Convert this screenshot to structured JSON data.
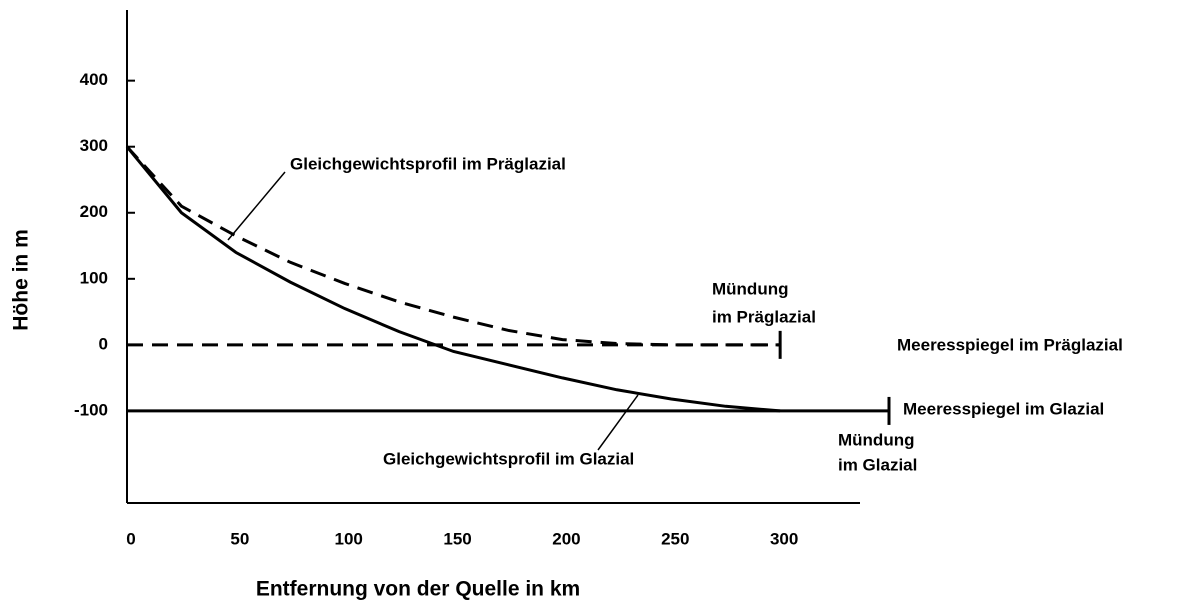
{
  "chart_data": {
    "type": "line",
    "xlabel": "Entfernung von der Quelle in km",
    "ylabel": "Höhe in m",
    "xlim": [
      0,
      350
    ],
    "ylim": [
      -240,
      500
    ],
    "xticks": [
      0,
      50,
      100,
      150,
      200,
      250,
      300
    ],
    "yticks": [
      -100,
      0,
      100,
      200,
      300,
      400
    ],
    "series": [
      {
        "name": "Gleichgewichtsprofil im Präglazial",
        "color": "#000000",
        "dash": true,
        "x": [
          0,
          25,
          50,
          75,
          100,
          125,
          150,
          175,
          200,
          225,
          250,
          275,
          300
        ],
        "values": [
          300,
          210,
          165,
          125,
          93,
          65,
          42,
          22,
          8,
          2,
          0,
          0,
          0
        ]
      },
      {
        "name": "Gleichgewichtsprofil im Glazial",
        "color": "#000000",
        "dash": false,
        "x": [
          0,
          25,
          50,
          75,
          100,
          125,
          150,
          175,
          200,
          225,
          250,
          275,
          300
        ],
        "values": [
          300,
          200,
          140,
          95,
          55,
          20,
          -10,
          -30,
          -50,
          -68,
          -82,
          -93,
          -100
        ]
      },
      {
        "name": "Meeresspiegel im Präglazial",
        "color": "#000000",
        "dash": true,
        "x": [
          0,
          300
        ],
        "values": [
          0,
          0
        ]
      },
      {
        "name": "Meeresspiegel im Glazial",
        "color": "#000000",
        "dash": false,
        "x": [
          0,
          350
        ],
        "values": [
          -100,
          -100
        ]
      }
    ],
    "annotations": [
      "Mündung",
      "im Präglazial",
      "Mündung",
      "im Glazial"
    ]
  }
}
